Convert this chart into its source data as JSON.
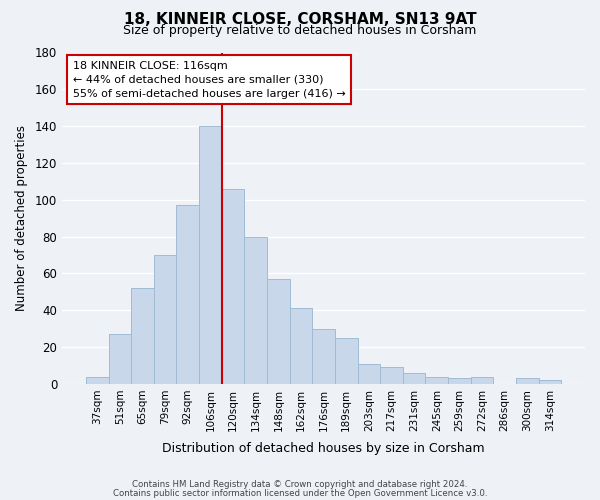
{
  "title": "18, KINNEIR CLOSE, CORSHAM, SN13 9AT",
  "subtitle": "Size of property relative to detached houses in Corsham",
  "xlabel": "Distribution of detached houses by size in Corsham",
  "ylabel": "Number of detached properties",
  "bar_labels": [
    "37sqm",
    "51sqm",
    "65sqm",
    "79sqm",
    "92sqm",
    "106sqm",
    "120sqm",
    "134sqm",
    "148sqm",
    "162sqm",
    "176sqm",
    "189sqm",
    "203sqm",
    "217sqm",
    "231sqm",
    "245sqm",
    "259sqm",
    "272sqm",
    "286sqm",
    "300sqm",
    "314sqm"
  ],
  "bar_values": [
    4,
    27,
    52,
    70,
    97,
    140,
    106,
    80,
    57,
    41,
    30,
    25,
    11,
    9,
    6,
    4,
    3,
    4,
    0,
    3,
    2
  ],
  "bar_color": "#c8d8ea",
  "bar_edgecolor": "#a0bcd4",
  "vline_x_index": 6,
  "vline_color": "#cc0000",
  "ylim": [
    0,
    180
  ],
  "yticks": [
    0,
    20,
    40,
    60,
    80,
    100,
    120,
    140,
    160,
    180
  ],
  "annotation_title": "18 KINNEIR CLOSE: 116sqm",
  "annotation_line1": "← 44% of detached houses are smaller (330)",
  "annotation_line2": "55% of semi-detached houses are larger (416) →",
  "annotation_box_facecolor": "#ffffff",
  "annotation_box_edgecolor": "#cc0000",
  "footer_line1": "Contains HM Land Registry data © Crown copyright and database right 2024.",
  "footer_line2": "Contains public sector information licensed under the Open Government Licence v3.0.",
  "background_color": "#eef2f7",
  "grid_color": "#ffffff"
}
